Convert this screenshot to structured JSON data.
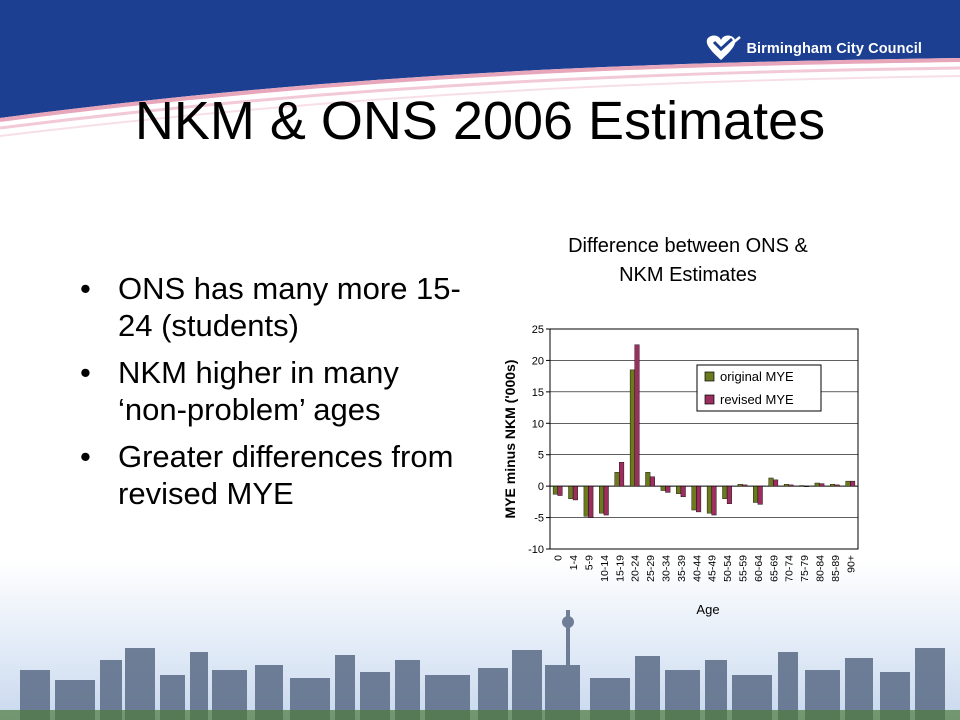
{
  "logo": {
    "text": "Birmingham City Council",
    "icon": "heart-shield-logo"
  },
  "slide": {
    "title": "NKM & ONS 2006 Estimates",
    "bullets": [
      "ONS has many more 15-24 (students)",
      "NKM higher in many ‘non-problem’ ages",
      "Greater differences from revised MYE"
    ],
    "bullet_char": "•"
  },
  "colors": {
    "banner": "#1c3f92",
    "series1": "#6b7a1e",
    "series2": "#9b2e5e"
  },
  "chart_data": {
    "type": "bar",
    "title": [
      "Difference between ONS &",
      "NKM Estimates"
    ],
    "xlabel": "Age",
    "ylabel": "MYE minus NKM ('000s)",
    "ylim": [
      -10,
      25
    ],
    "yticks": [
      -10,
      -5,
      0,
      5,
      10,
      15,
      20,
      25
    ],
    "grid": true,
    "legend": "right",
    "categories": [
      "0",
      "1-4",
      "5-9",
      "10-14",
      "15-19",
      "20-24",
      "25-29",
      "30-34",
      "35-39",
      "40-44",
      "45-49",
      "50-54",
      "55-59",
      "60-64",
      "65-69",
      "70-74",
      "75-79",
      "80-84",
      "85-89",
      "90+"
    ],
    "series": [
      {
        "name": "original MYE",
        "color": "#6b7a1e",
        "values": [
          -1.3,
          -2.0,
          -4.8,
          -4.3,
          2.2,
          18.5,
          2.2,
          -0.7,
          -1.2,
          -3.8,
          -4.3,
          -2.0,
          0.3,
          -2.6,
          1.3,
          0.3,
          0.1,
          0.5,
          0.3,
          0.8
        ]
      },
      {
        "name": "revised MYE",
        "color": "#9b2e5e",
        "values": [
          -1.5,
          -2.2,
          -5.0,
          -4.6,
          3.8,
          22.5,
          1.5,
          -1.0,
          -1.7,
          -4.1,
          -4.6,
          -2.8,
          0.2,
          -2.9,
          1.0,
          0.2,
          0.0,
          0.4,
          0.2,
          0.8
        ]
      }
    ]
  }
}
